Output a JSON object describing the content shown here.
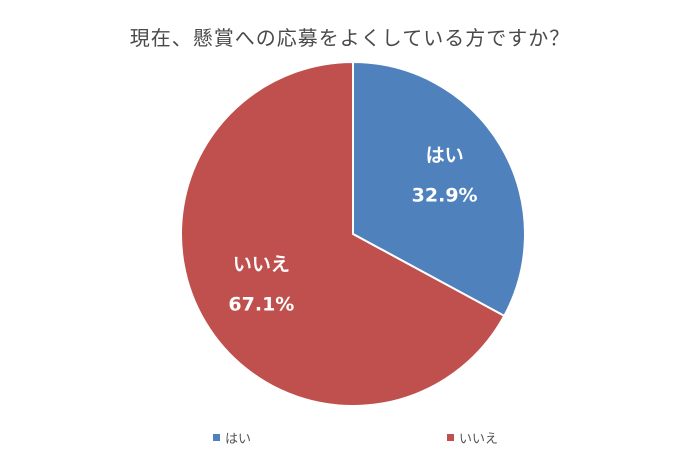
{
  "chart_data": {
    "type": "pie",
    "title": "現在、懸賞への応募をよくしている方ですか？",
    "categories": [
      "はい",
      "いいえ"
    ],
    "values": [
      32.9,
      67.1
    ],
    "value_labels": [
      "32.9%",
      "67.1%"
    ],
    "colors": [
      "#4f81bd",
      "#c0504d"
    ],
    "legend_position": "bottom"
  }
}
